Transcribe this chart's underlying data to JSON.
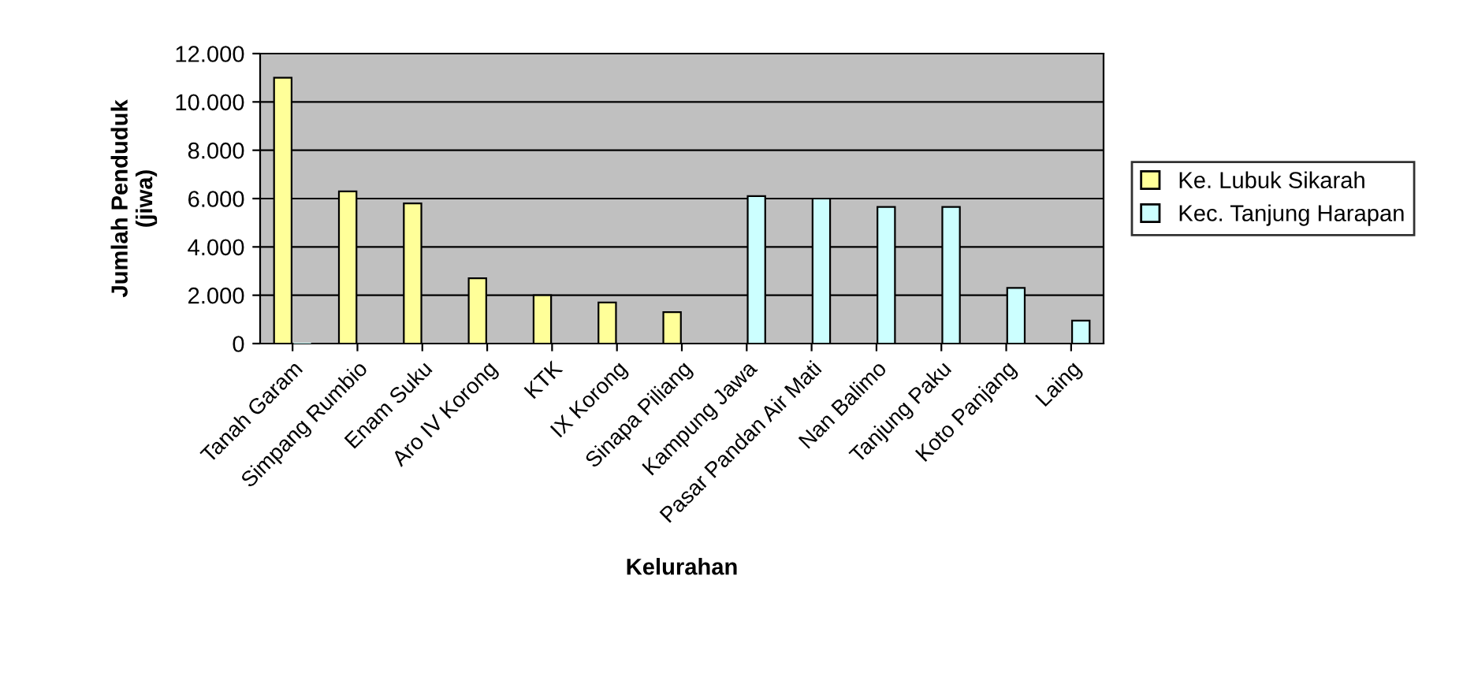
{
  "chart_data": {
    "type": "bar",
    "xlabel": "Kelurahan",
    "ylabel": "Jumlah Penduduk\n(jiwa)",
    "categories": [
      "Tanah Garam",
      "Simpang Rumbio",
      "Enam Suku",
      "Aro IV Korong",
      "KTK",
      "IX Korong",
      "Sinapa Piliang",
      "Kampung Jawa",
      "Pasar Pandan Air Mati",
      "Nan Balimo",
      "Tanjung Paku",
      "Koto Panjang",
      "Laing"
    ],
    "series": [
      {
        "name": "Ke. Lubuk Sikarah",
        "color": "#ffff99",
        "values": [
          11000,
          6300,
          5800,
          2700,
          2000,
          1700,
          1300,
          null,
          null,
          null,
          null,
          null,
          null
        ]
      },
      {
        "name": "Kec. Tanjung Harapan",
        "color": "#ccffff",
        "values": [
          0,
          null,
          null,
          null,
          null,
          null,
          null,
          6100,
          6000,
          5650,
          5650,
          2300,
          950
        ]
      }
    ],
    "ylim": [
      0,
      12000
    ],
    "yticks": [
      0,
      {
        "value": 2000,
        "label": "2.000"
      },
      {
        "value": 4000,
        "label": "4.000"
      },
      {
        "value": 6000,
        "label": "6.000"
      },
      {
        "value": 8000,
        "label": "8.000"
      },
      {
        "value": 10000,
        "label": "10.000"
      },
      {
        "value": 12000,
        "label": "12.000"
      }
    ],
    "grid": "y",
    "legend": "right"
  }
}
